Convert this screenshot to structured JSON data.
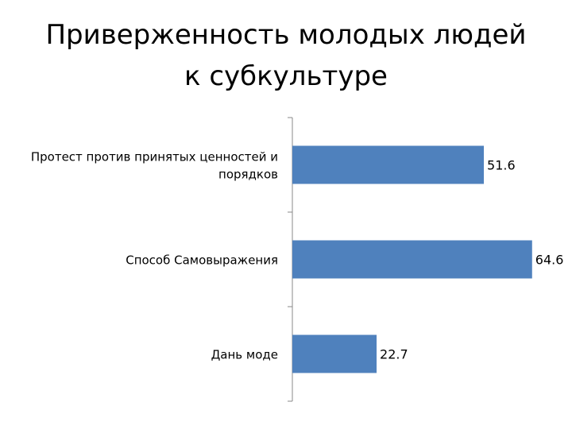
{
  "chart_data": {
    "type": "bar",
    "orientation": "horizontal",
    "title": "Приверженность молодых людей\nк субкультуре",
    "categories": [
      "Протест против принятых ценностей и\nпорядков",
      "Способ Самовыражения",
      "Дань моде"
    ],
    "values": [
      51.6,
      64.6,
      22.7
    ],
    "color": "#4f81bd",
    "xlim": [
      0,
      70
    ]
  }
}
